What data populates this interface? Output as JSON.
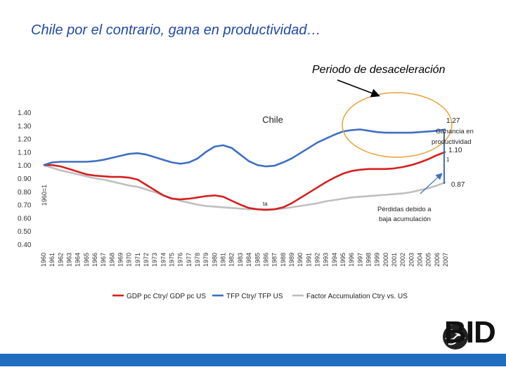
{
  "slide": {
    "title": "Chile por el contrario, gana en productividad…",
    "period_label": "Periodo de desaceleración",
    "logo_text": "BID"
  },
  "colors": {
    "gdp": "#d4201f",
    "tfp": "#3f6fc2",
    "factor": "#bfbfbf",
    "highlight": "#e8a23c",
    "footer": "#1f6ec0",
    "title": "#2149a8"
  },
  "chart_data": {
    "type": "line",
    "title": "Chile",
    "ylabel": "1960=1",
    "ylim": [
      0.4,
      1.4
    ],
    "yticks": [
      "0.40",
      "0.50",
      "0.60",
      "0.70",
      "0.80",
      "0.90",
      "1.00",
      "1.10",
      "1.20",
      "1.30",
      "1.40"
    ],
    "x": [
      "1960",
      "1961",
      "1962",
      "1963",
      "1964",
      "1965",
      "1966",
      "1967",
      "1968",
      "1969",
      "1970",
      "1971",
      "1972",
      "1973",
      "1974",
      "1975",
      "1976",
      "1977",
      "1978",
      "1979",
      "1980",
      "1981",
      "1982",
      "1983",
      "1984",
      "1985",
      "1986",
      "1987",
      "1988",
      "1989",
      "1990",
      "1991",
      "1992",
      "1993",
      "1994",
      "1995",
      "1996",
      "1997",
      "1998",
      "1999",
      "2000",
      "2001",
      "2002",
      "2003",
      "2004",
      "2005",
      "2006",
      "2007"
    ],
    "series": [
      {
        "name": "GDP pc Ctry/ GDP pc US",
        "color": "#d4201f",
        "values": [
          1.0,
          1.0,
          0.99,
          0.97,
          0.95,
          0.93,
          0.92,
          0.915,
          0.91,
          0.91,
          0.905,
          0.89,
          0.85,
          0.81,
          0.77,
          0.745,
          0.74,
          0.745,
          0.755,
          0.765,
          0.77,
          0.76,
          0.73,
          0.7,
          0.675,
          0.665,
          0.66,
          0.665,
          0.68,
          0.71,
          0.75,
          0.79,
          0.83,
          0.87,
          0.905,
          0.935,
          0.955,
          0.965,
          0.97,
          0.97,
          0.97,
          0.975,
          0.985,
          1.0,
          1.02,
          1.045,
          1.075,
          1.1
        ]
      },
      {
        "name": "TFP Ctry/ TFP US",
        "color": "#3f6fc2",
        "values": [
          1.0,
          1.02,
          1.025,
          1.025,
          1.025,
          1.025,
          1.03,
          1.04,
          1.055,
          1.07,
          1.085,
          1.09,
          1.08,
          1.06,
          1.04,
          1.02,
          1.01,
          1.02,
          1.05,
          1.1,
          1.14,
          1.15,
          1.13,
          1.08,
          1.03,
          1.0,
          0.99,
          0.995,
          1.02,
          1.05,
          1.09,
          1.13,
          1.17,
          1.2,
          1.23,
          1.255,
          1.265,
          1.27,
          1.26,
          1.25,
          1.245,
          1.245,
          1.245,
          1.245,
          1.25,
          1.255,
          1.26,
          1.27
        ]
      },
      {
        "name": "Factor Accumulation Ctry vs. US",
        "color": "#bfbfbf",
        "values": [
          1.0,
          0.98,
          0.96,
          0.945,
          0.93,
          0.915,
          0.9,
          0.89,
          0.875,
          0.86,
          0.845,
          0.835,
          0.815,
          0.795,
          0.77,
          0.75,
          0.73,
          0.715,
          0.7,
          0.69,
          0.685,
          0.68,
          0.675,
          0.67,
          0.665,
          0.665,
          0.665,
          0.665,
          0.67,
          0.68,
          0.69,
          0.7,
          0.71,
          0.725,
          0.735,
          0.745,
          0.755,
          0.76,
          0.765,
          0.77,
          0.775,
          0.78,
          0.785,
          0.795,
          0.81,
          0.825,
          0.845,
          0.87
        ]
      }
    ],
    "annotations": {
      "val_1_27": "1.27",
      "val_1_10": "1.10",
      "val_0_87": "0.87",
      "small_1": "1",
      "small_mid": "ta",
      "gain_line1": "Ganancia en",
      "gain_line2": "productividad",
      "loss_line1": "Pérdidas debido a",
      "loss_line2": "baja acumulación"
    }
  }
}
